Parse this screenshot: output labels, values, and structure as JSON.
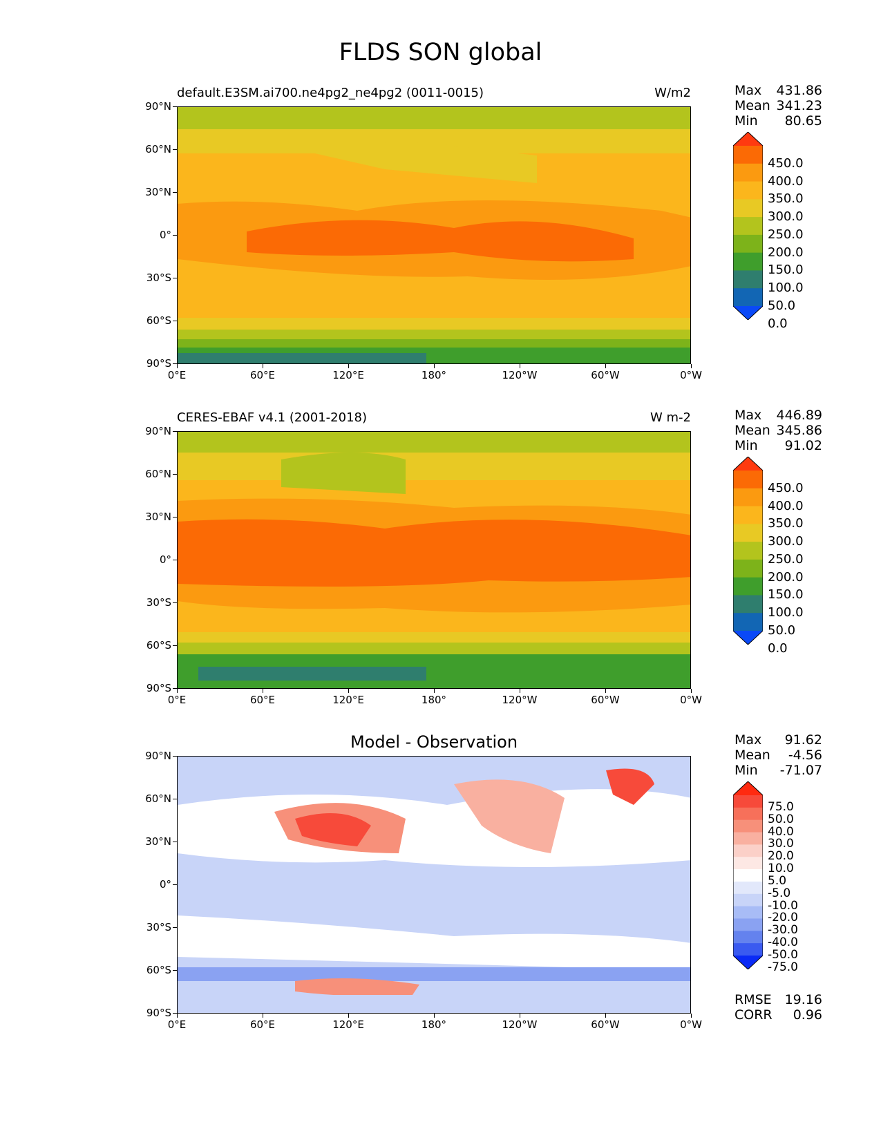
{
  "figure": {
    "title": "FLDS SON global"
  },
  "axes": {
    "lat_labels": [
      "90°N",
      "60°N",
      "30°N",
      "0°",
      "30°S",
      "60°S",
      "90°S"
    ],
    "lon_labels": [
      "0°E",
      "60°E",
      "120°E",
      "180°",
      "120°W",
      "60°W",
      "0°W"
    ]
  },
  "panels": [
    {
      "id": "model",
      "title_left": "default.E3SM.ai700.ne4pg2_ne4pg2 (0011-0015)",
      "title_right": "W/m2",
      "title_center": "",
      "stats": {
        "max_label": "Max",
        "max": "431.86",
        "mean_label": "Mean",
        "mean": "341.23",
        "min_label": "Min",
        "min": "80.65"
      },
      "colorbar": {
        "labels": [
          "450.0",
          "400.0",
          "350.0",
          "300.0",
          "250.0",
          "200.0",
          "150.0",
          "100.0",
          "50.0",
          "0.0"
        ],
        "colors": [
          "#ff3a10",
          "#fb6a05",
          "#fb9a10",
          "#fbb61c",
          "#e8c924",
          "#b3c41d",
          "#7db31a",
          "#3f9e2c",
          "#2f7e6e",
          "#1266b4",
          "#0a49f7"
        ]
      }
    },
    {
      "id": "obs",
      "title_left": "CERES-EBAF v4.1 (2001-2018)",
      "title_right": "W m-2",
      "title_center": "",
      "stats": {
        "max_label": "Max",
        "max": "446.89",
        "mean_label": "Mean",
        "mean": "345.86",
        "min_label": "Min",
        "min": "91.02"
      },
      "colorbar": {
        "labels": [
          "450.0",
          "400.0",
          "350.0",
          "300.0",
          "250.0",
          "200.0",
          "150.0",
          "100.0",
          "50.0",
          "0.0"
        ],
        "colors": [
          "#ff3a10",
          "#fb6a05",
          "#fb9a10",
          "#fbb61c",
          "#e8c924",
          "#b3c41d",
          "#7db31a",
          "#3f9e2c",
          "#2f7e6e",
          "#1266b4",
          "#0a49f7"
        ]
      }
    },
    {
      "id": "diff",
      "title_left": "",
      "title_right": "",
      "title_center": "Model - Observation",
      "stats": {
        "max_label": "Max",
        "max": "91.62",
        "mean_label": "Mean",
        "mean": "-4.56",
        "min_label": "Min",
        "min": "-71.07"
      },
      "colorbar": {
        "labels": [
          "75.0",
          "50.0",
          "40.0",
          "30.0",
          "20.0",
          "10.0",
          "5.0",
          "-5.0",
          "-10.0",
          "-20.0",
          "-30.0",
          "-40.0",
          "-50.0",
          "-75.0"
        ],
        "colors": [
          "#ff2a10",
          "#f74a3a",
          "#f7705a",
          "#f7907a",
          "#f9b0a0",
          "#fbd0c8",
          "#fde8e4",
          "#ffffff",
          "#e2e8fb",
          "#c8d4f8",
          "#a8bcf6",
          "#8aa2f2",
          "#6482ee",
          "#3a5af0",
          "#0a2af6"
        ]
      },
      "extra": {
        "rmse_label": "RMSE",
        "rmse": "19.16",
        "corr_label": "CORR",
        "corr": "0.96"
      }
    }
  ]
}
